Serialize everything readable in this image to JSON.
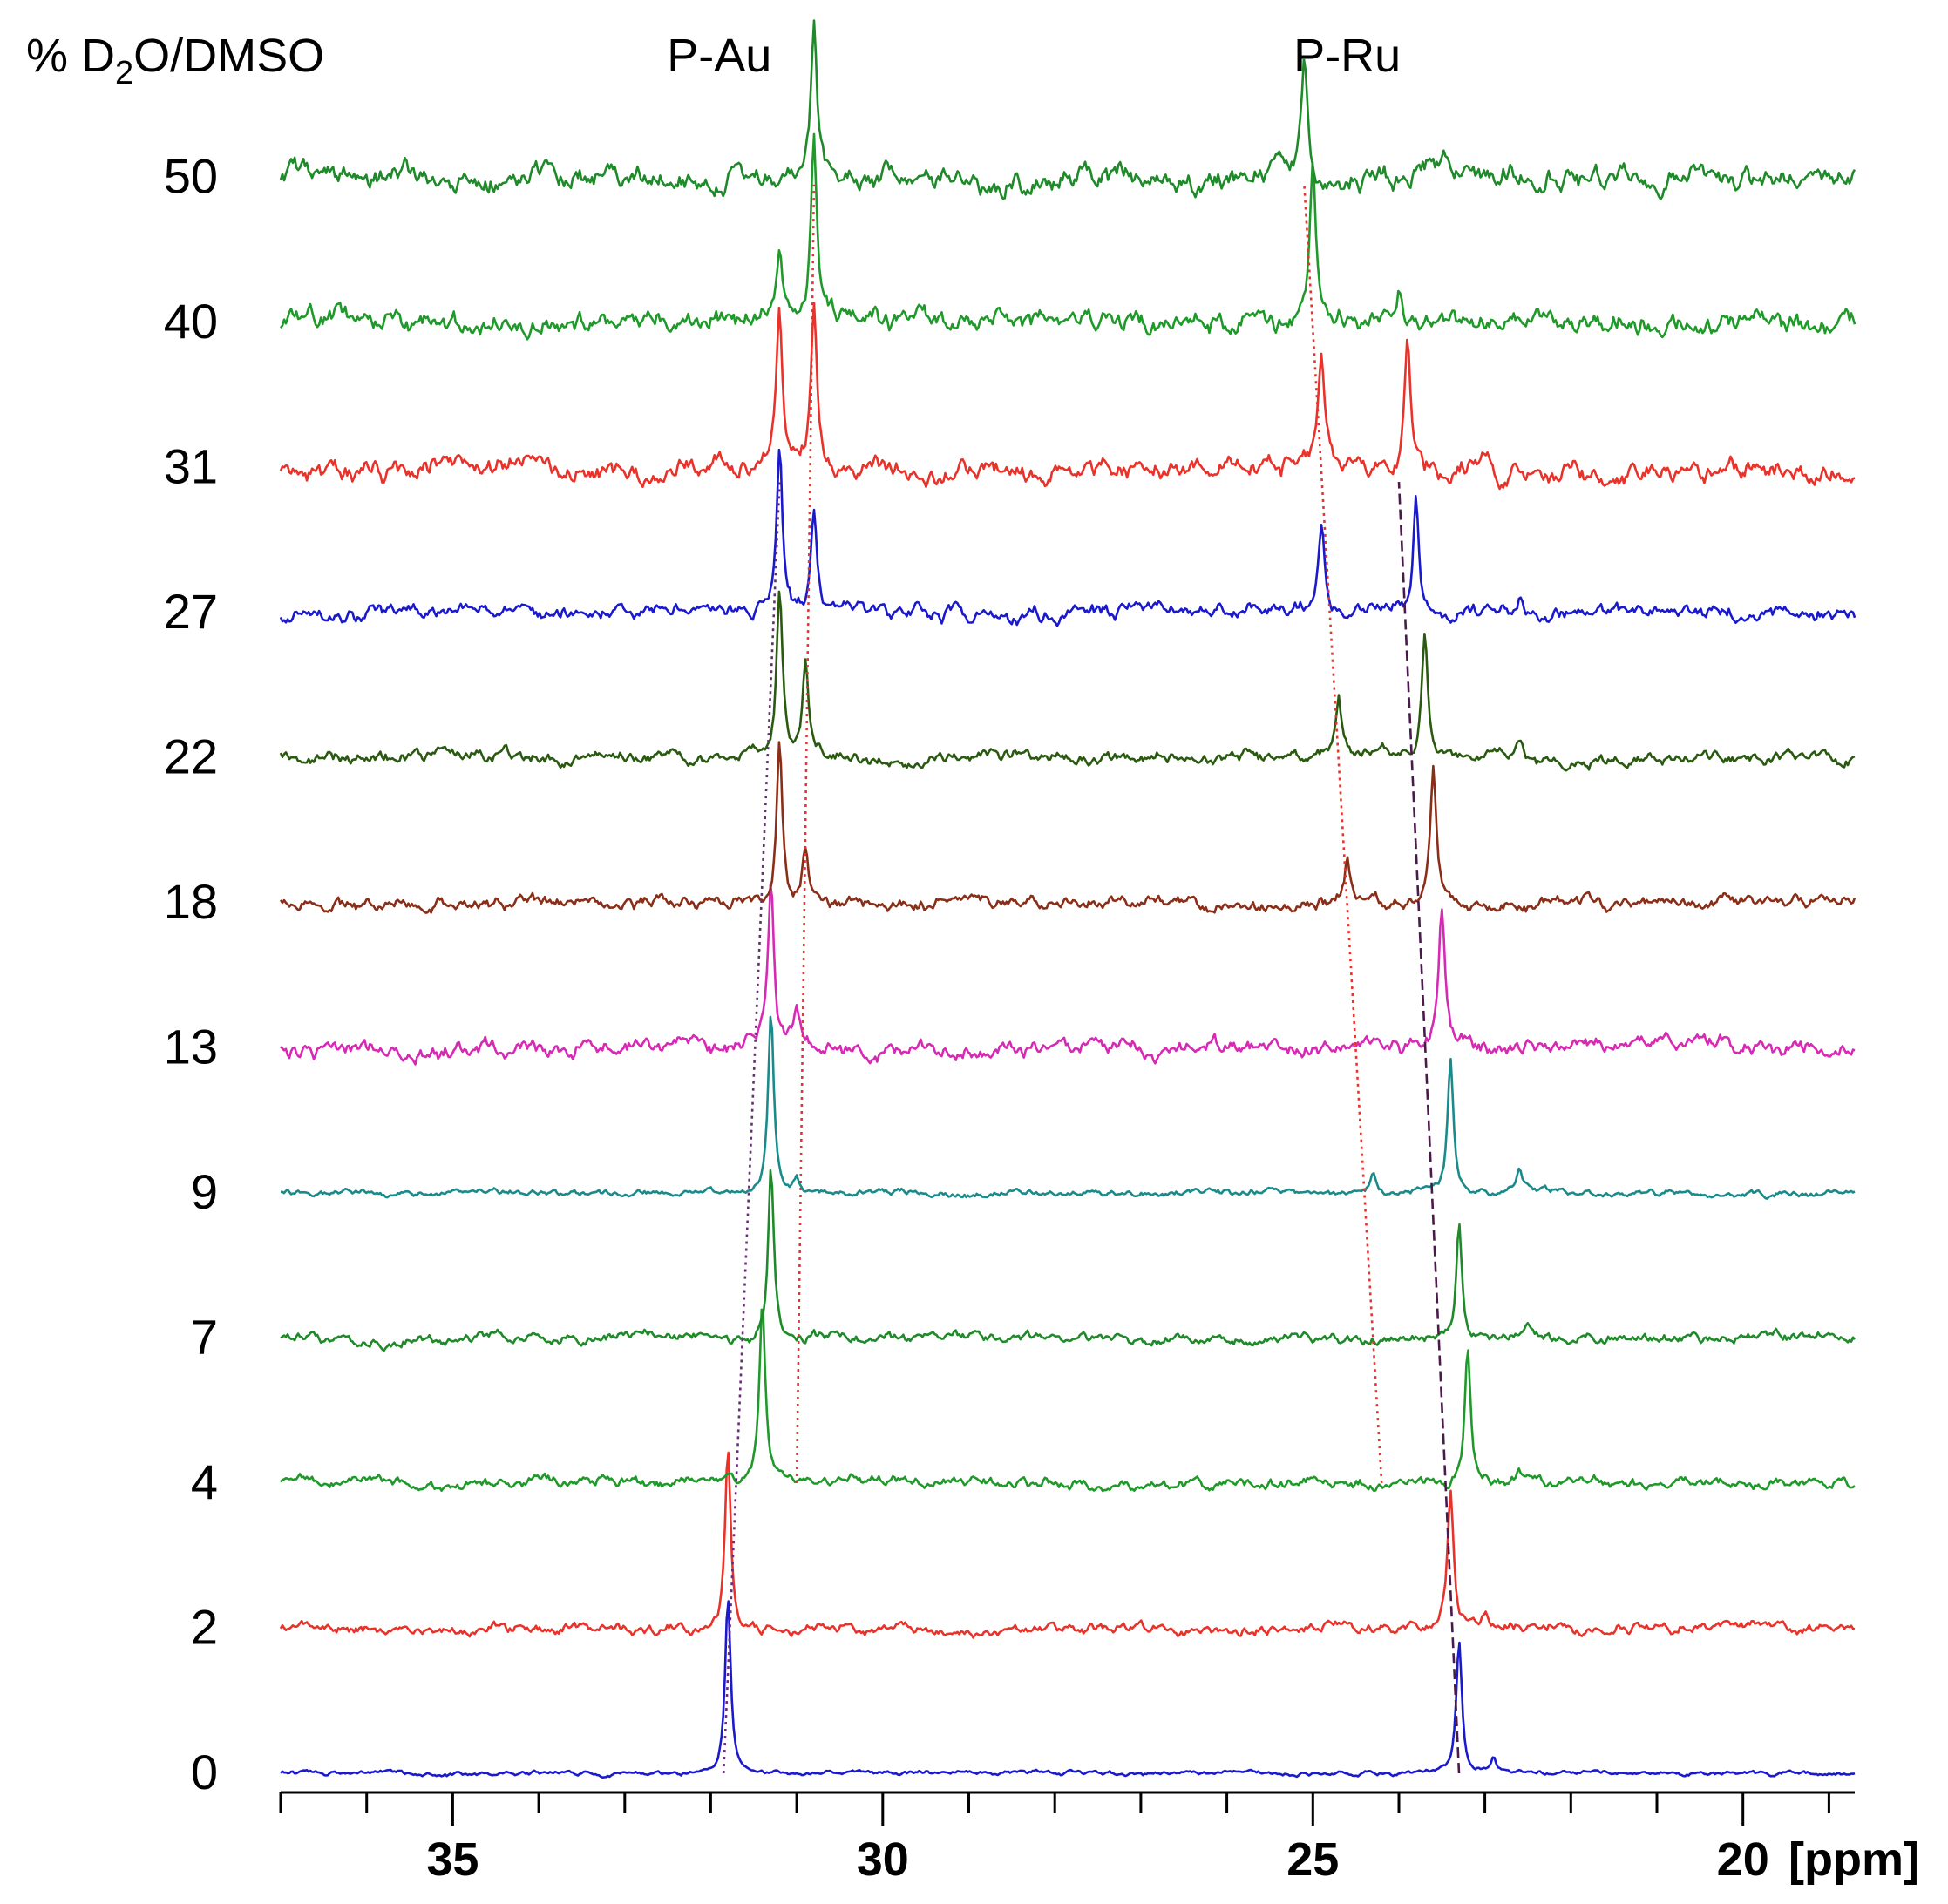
{
  "chart_data": {
    "type": "line",
    "title": "",
    "ylabel_prefix": "% D",
    "ylabel_sub": "2",
    "ylabel_suffix": "O/DMSO",
    "xlabel": "[ppm]",
    "xlim": [
      37.0,
      18.7
    ],
    "x_ticks": [
      35,
      30,
      25,
      20
    ],
    "x_minor_step": 1,
    "grid": false,
    "peak_labels": [
      {
        "text": "P-Au",
        "x": 31.9
      },
      {
        "text": "P-Ru",
        "x": 24.6
      }
    ],
    "series": [
      {
        "name": "0",
        "color": "#1a1acc",
        "noise": 0.02,
        "seed": 1,
        "peaks": [
          {
            "x": 31.8,
            "h": 1.0
          },
          {
            "x": 23.3,
            "h": 0.75
          },
          {
            "x": 22.9,
            "h": 0.08
          }
        ]
      },
      {
        "name": "2",
        "color": "#e8322a",
        "noise": 0.05,
        "seed": 2,
        "peaks": [
          {
            "x": 31.8,
            "h": 1.0
          },
          {
            "x": 23.4,
            "h": 0.75
          },
          {
            "x": 23.0,
            "h": 0.06
          }
        ]
      },
      {
        "name": "4",
        "color": "#1f9a2a",
        "noise": 0.05,
        "seed": 3,
        "peaks": [
          {
            "x": 31.4,
            "h": 1.0
          },
          {
            "x": 23.2,
            "h": 0.75
          },
          {
            "x": 22.6,
            "h": 0.06
          }
        ]
      },
      {
        "name": "7",
        "color": "#1f8a2a",
        "noise": 0.05,
        "seed": 4,
        "peaks": [
          {
            "x": 31.3,
            "h": 0.95
          },
          {
            "x": 23.3,
            "h": 0.65
          },
          {
            "x": 22.5,
            "h": 0.05
          }
        ]
      },
      {
        "name": "9",
        "color": "#1a8a8a",
        "noise": 0.03,
        "seed": 5,
        "peaks": [
          {
            "x": 31.3,
            "h": 1.0
          },
          {
            "x": 31.0,
            "h": 0.1
          },
          {
            "x": 24.3,
            "h": 0.1
          },
          {
            "x": 23.4,
            "h": 0.75
          },
          {
            "x": 22.6,
            "h": 0.12
          }
        ]
      },
      {
        "name": "13",
        "color": "#d62ab4",
        "noise": 0.08,
        "seed": 6,
        "peaks": [
          {
            "x": 31.3,
            "h": 0.95
          },
          {
            "x": 31.0,
            "h": 0.15
          },
          {
            "x": 24.4,
            "h": 0.1
          },
          {
            "x": 23.5,
            "h": 0.75
          }
        ]
      },
      {
        "name": "18",
        "color": "#8a2e18",
        "noise": 0.06,
        "seed": 7,
        "peaks": [
          {
            "x": 31.2,
            "h": 0.95
          },
          {
            "x": 30.9,
            "h": 0.3
          },
          {
            "x": 24.6,
            "h": 0.25
          },
          {
            "x": 23.6,
            "h": 0.75
          }
        ]
      },
      {
        "name": "22",
        "color": "#2a5a10",
        "noise": 0.06,
        "seed": 8,
        "peaks": [
          {
            "x": 31.2,
            "h": 0.95
          },
          {
            "x": 30.9,
            "h": 0.5
          },
          {
            "x": 24.7,
            "h": 0.35
          },
          {
            "x": 23.7,
            "h": 0.75
          },
          {
            "x": 22.6,
            "h": 0.1
          }
        ]
      },
      {
        "name": "27",
        "color": "#1a1acc",
        "noise": 0.07,
        "seed": 9,
        "peaks": [
          {
            "x": 31.2,
            "h": 0.95
          },
          {
            "x": 30.8,
            "h": 0.6
          },
          {
            "x": 24.9,
            "h": 0.5
          },
          {
            "x": 23.8,
            "h": 0.65
          },
          {
            "x": 22.6,
            "h": 0.1
          }
        ]
      },
      {
        "name": "31",
        "color": "#e8322a",
        "noise": 0.1,
        "seed": 10,
        "peaks": [
          {
            "x": 31.2,
            "h": 0.85
          },
          {
            "x": 30.8,
            "h": 0.85
          },
          {
            "x": 24.9,
            "h": 0.65
          },
          {
            "x": 23.9,
            "h": 0.75
          }
        ]
      },
      {
        "name": "40",
        "color": "#1f9a2a",
        "noise": 0.1,
        "seed": 11,
        "peaks": [
          {
            "x": 31.2,
            "h": 0.35
          },
          {
            "x": 30.8,
            "h": 1.0
          },
          {
            "x": 25.0,
            "h": 0.95
          },
          {
            "x": 24.0,
            "h": 0.15
          }
        ]
      },
      {
        "name": "50",
        "color": "#1f8a2a",
        "noise": 0.11,
        "seed": 12,
        "peaks": [
          {
            "x": 30.8,
            "h": 0.85
          },
          {
            "x": 25.1,
            "h": 0.65
          },
          {
            "x": 22.7,
            "h": 0.1
          }
        ]
      }
    ],
    "guide_lines": [
      {
        "color": "#6b2a7a",
        "style": "dotted",
        "points": [
          [
            31.85,
            0.0
          ],
          [
            31.2,
            8.9
          ]
        ]
      },
      {
        "color": "#e8322a",
        "style": "dotted",
        "points": [
          [
            31.0,
            2.0
          ],
          [
            30.8,
            10.95
          ]
        ]
      },
      {
        "color": "#e8322a",
        "style": "dotted",
        "points": [
          [
            24.2,
            2.0
          ],
          [
            25.1,
            10.95
          ]
        ]
      },
      {
        "color": "#4a1a4a",
        "style": "dashed",
        "points": [
          [
            23.3,
            0.0
          ],
          [
            24.0,
            8.9
          ]
        ]
      }
    ]
  }
}
